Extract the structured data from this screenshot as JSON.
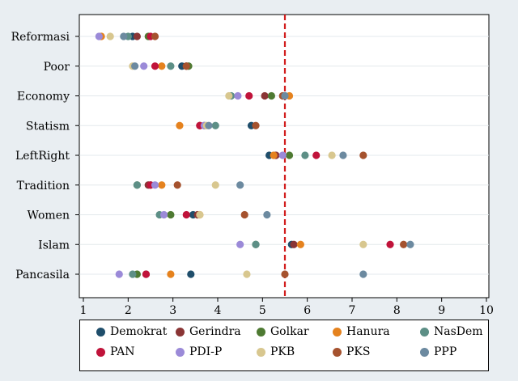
{
  "chart_data": {
    "type": "scatter",
    "title": "",
    "xlabel": "",
    "ylabel": "",
    "xlim": [
      1,
      10
    ],
    "xticks": [
      1,
      2,
      3,
      4,
      5,
      6,
      7,
      8,
      9,
      10
    ],
    "categories": [
      "Reformasi",
      "Poor",
      "Economy",
      "Statism",
      "LeftRight",
      "Tradition",
      "Women",
      "Islam",
      "Pancasila"
    ],
    "reference_line": {
      "x": 5.5,
      "color": "#d21e1e",
      "style": "dashed"
    },
    "grid": "horizontal",
    "legend_position": "bottom",
    "series": [
      {
        "name": "Demokrat",
        "color": "#1f4e6b",
        "values": [
          2.1,
          3.2,
          5.5,
          4.75,
          5.15,
          2.5,
          3.45,
          5.65,
          3.4
        ]
      },
      {
        "name": "Gerindra",
        "color": "#8a3535",
        "values": [
          2.2,
          3.3,
          5.05,
          3.6,
          5.3,
          2.45,
          3.55,
          5.7,
          2.4
        ]
      },
      {
        "name": "Golkar",
        "color": "#4e7a32",
        "values": [
          2.45,
          3.35,
          5.2,
          3.7,
          5.6,
          2.2,
          2.95,
          4.85,
          2.2
        ]
      },
      {
        "name": "Hanura",
        "color": "#e5821e",
        "values": [
          1.4,
          2.75,
          5.6,
          3.15,
          5.25,
          2.75,
          3.6,
          5.85,
          2.95
        ]
      },
      {
        "name": "NasDem",
        "color": "#5d8f86",
        "values": [
          2.0,
          2.95,
          4.3,
          3.95,
          5.95,
          2.2,
          2.7,
          4.85,
          2.1
        ]
      },
      {
        "name": "PAN",
        "color": "#c0133a",
        "values": [
          2.5,
          2.6,
          4.7,
          3.6,
          6.2,
          2.5,
          3.3,
          7.85,
          2.4
        ]
      },
      {
        "name": "PDI-P",
        "color": "#9b8ad8",
        "values": [
          1.35,
          2.35,
          4.45,
          3.7,
          5.45,
          2.6,
          2.8,
          4.5,
          1.8
        ]
      },
      {
        "name": "PKB",
        "color": "#d8c78f",
        "values": [
          1.6,
          2.1,
          4.25,
          3.75,
          6.55,
          3.95,
          3.6,
          7.25,
          4.65
        ]
      },
      {
        "name": "PKS",
        "color": "#a5522e",
        "values": [
          2.6,
          3.3,
          5.45,
          4.85,
          7.25,
          3.1,
          4.6,
          8.15,
          5.5
        ]
      },
      {
        "name": "PPP",
        "color": "#6c8aa0",
        "values": [
          1.9,
          2.15,
          5.5,
          3.8,
          6.8,
          4.5,
          5.1,
          8.3,
          7.25
        ]
      }
    ]
  },
  "legend": {
    "items": [
      {
        "label": "Demokrat",
        "color": "#1f4e6b"
      },
      {
        "label": "Gerindra",
        "color": "#8a3535"
      },
      {
        "label": "Golkar",
        "color": "#4e7a32"
      },
      {
        "label": "Hanura",
        "color": "#e5821e"
      },
      {
        "label": "NasDem",
        "color": "#5d8f86"
      },
      {
        "label": "PAN",
        "color": "#c0133a"
      },
      {
        "label": "PDI-P",
        "color": "#9b8ad8"
      },
      {
        "label": "PKB",
        "color": "#d8c78f"
      },
      {
        "label": "PKS",
        "color": "#a5522e"
      },
      {
        "label": "PPP",
        "color": "#6c8aa0"
      }
    ]
  }
}
